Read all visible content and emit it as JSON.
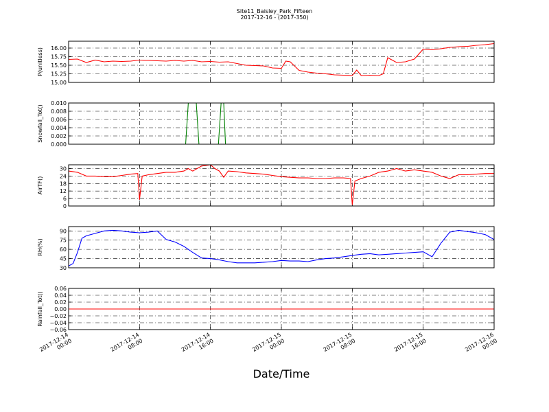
{
  "figure": {
    "title": "Site11_Baisley_Park_Fifteen",
    "subtitle": "2017-12-16 - (2017-350)",
    "xlabel": "Date/Time",
    "x_ticks": [
      {
        "line1": "2017-12-14",
        "line2": "00:00"
      },
      {
        "line1": "2017-12-14",
        "line2": "08:00"
      },
      {
        "line1": "2017-12-14",
        "line2": "16:00"
      },
      {
        "line1": "2017-12-15",
        "line2": "00:00"
      },
      {
        "line1": "2017-12-15",
        "line2": "08:00"
      },
      {
        "line1": "2017-12-15",
        "line2": "16:00"
      },
      {
        "line1": "2017-12-16",
        "line2": "00:00"
      }
    ]
  },
  "chart_data": [
    {
      "type": "line",
      "ylabel": "P(unitless)",
      "ylim": [
        15.0,
        16.2
      ],
      "yticks": [
        "15.00",
        "15.25",
        "15.50",
        "15.75",
        "16.00"
      ],
      "ytick_values": [
        15.0,
        15.25,
        15.5,
        15.75,
        16.0
      ],
      "color": "#ff0000",
      "grid": true,
      "x_hours": [
        0,
        1,
        2,
        3,
        4,
        5,
        6,
        7,
        8,
        8.5,
        9,
        10,
        11,
        12,
        13,
        14,
        15,
        16,
        17,
        18,
        19,
        20,
        21,
        22,
        23,
        24,
        24.5,
        25,
        26,
        27,
        28,
        29,
        30,
        31,
        32,
        32.5,
        33,
        34,
        35,
        35.5,
        36,
        37,
        38,
        39,
        40,
        41,
        42,
        43,
        44,
        45,
        46,
        47,
        48
      ],
      "y": [
        15.67,
        15.68,
        15.58,
        15.65,
        15.6,
        15.62,
        15.61,
        15.62,
        15.65,
        15.64,
        15.64,
        15.63,
        15.62,
        15.64,
        15.62,
        15.64,
        15.6,
        15.61,
        15.59,
        15.6,
        15.55,
        15.5,
        15.49,
        15.48,
        15.42,
        15.41,
        15.62,
        15.6,
        15.35,
        15.3,
        15.27,
        15.25,
        15.22,
        15.21,
        15.2,
        15.36,
        15.2,
        15.21,
        15.2,
        15.25,
        15.72,
        15.58,
        15.6,
        15.68,
        15.97,
        15.95,
        15.98,
        16.02,
        16.04,
        16.05,
        16.08,
        16.1,
        16.13
      ]
    },
    {
      "type": "line",
      "ylabel": "Snowfall_Tot()",
      "ylim": [
        0.0,
        0.01
      ],
      "yticks": [
        "0.000",
        "0.002",
        "0.004",
        "0.006",
        "0.008",
        "0.010"
      ],
      "ytick_values": [
        0.0,
        0.002,
        0.004,
        0.006,
        0.008,
        0.01
      ],
      "color": "#008000",
      "grid": true,
      "x_hours": [
        0,
        13.2,
        13.5,
        14,
        14.4,
        14.7,
        16.9,
        17.2,
        17.5,
        17.7,
        18,
        48
      ],
      "y": [
        0,
        0,
        0.01,
        0.01,
        0.01,
        0,
        0,
        0.01,
        0.01,
        0,
        0,
        0
      ]
    },
    {
      "type": "line",
      "ylabel": "AirTF()",
      "ylim": [
        0,
        33
      ],
      "yticks": [
        "0",
        "6",
        "12",
        "18",
        "24",
        "30"
      ],
      "ytick_values": [
        0,
        6,
        12,
        18,
        24,
        30
      ],
      "color": "#ff0000",
      "grid": true,
      "x_hours": [
        0,
        1,
        2,
        3,
        4,
        5,
        6,
        7,
        7.8,
        8,
        8.3,
        9,
        10,
        11,
        12,
        13,
        13.5,
        14,
        15,
        16,
        16.5,
        17,
        17.5,
        18,
        19,
        20,
        21,
        22,
        23,
        24,
        25,
        26,
        27,
        28,
        29,
        30,
        31,
        31.8,
        32,
        32.3,
        33,
        34,
        35,
        36,
        37,
        38,
        39,
        40,
        41,
        42,
        43,
        44,
        45,
        46,
        47,
        48
      ],
      "y": [
        28,
        27,
        24,
        24,
        23.5,
        23.5,
        24.5,
        25.5,
        26,
        5,
        24,
        25,
        26,
        27,
        27,
        28,
        30,
        28,
        32,
        33,
        30,
        28,
        23,
        28,
        27.5,
        26.5,
        26,
        25.5,
        24.5,
        23.5,
        23,
        22.5,
        22.5,
        22,
        22,
        22.5,
        22.5,
        22,
        1,
        20,
        22,
        24,
        27,
        28,
        30,
        28,
        29,
        28,
        27,
        24,
        22,
        25,
        25,
        25.5,
        26,
        26
      ]
    },
    {
      "type": "line",
      "ylabel": "RH(%)",
      "ylim": [
        30,
        97
      ],
      "yticks": [
        "30",
        "45",
        "60",
        "75",
        "90"
      ],
      "ytick_values": [
        30,
        45,
        60,
        75,
        90
      ],
      "color": "#0000ff",
      "grid": true,
      "x_hours": [
        0,
        0.5,
        1,
        1.5,
        2,
        3,
        4,
        5,
        6,
        7,
        8,
        9,
        10,
        11,
        12,
        13,
        14,
        15,
        16,
        17,
        18,
        19,
        20,
        21,
        22,
        23,
        24,
        25,
        26,
        27,
        28,
        29,
        30,
        31,
        32,
        33,
        34,
        35,
        36,
        37,
        38,
        39,
        40,
        41,
        42,
        43,
        44,
        45,
        46,
        47,
        48
      ],
      "y": [
        33,
        37,
        55,
        78,
        82,
        86,
        90,
        91,
        90,
        88,
        87,
        88,
        90,
        76,
        72,
        65,
        55,
        46,
        45,
        43,
        40,
        38,
        38,
        38,
        39,
        40,
        42,
        41,
        41,
        40,
        43,
        45,
        46,
        48,
        50,
        52,
        53,
        51,
        52,
        53,
        54,
        55,
        56,
        48,
        70,
        88,
        91,
        89,
        87,
        84,
        76
      ]
    },
    {
      "type": "line",
      "ylabel": "Rainfall_Tot()",
      "ylim": [
        -0.06,
        0.06
      ],
      "yticks": [
        "−0.06",
        "−0.04",
        "−0.02",
        "0.00",
        "0.02",
        "0.04",
        "0.06"
      ],
      "ytick_values": [
        -0.06,
        -0.04,
        -0.02,
        0.0,
        0.02,
        0.04,
        0.06
      ],
      "color": "#ff0000",
      "grid": true,
      "x_hours": [
        0,
        48
      ],
      "y": [
        0,
        0
      ]
    }
  ]
}
